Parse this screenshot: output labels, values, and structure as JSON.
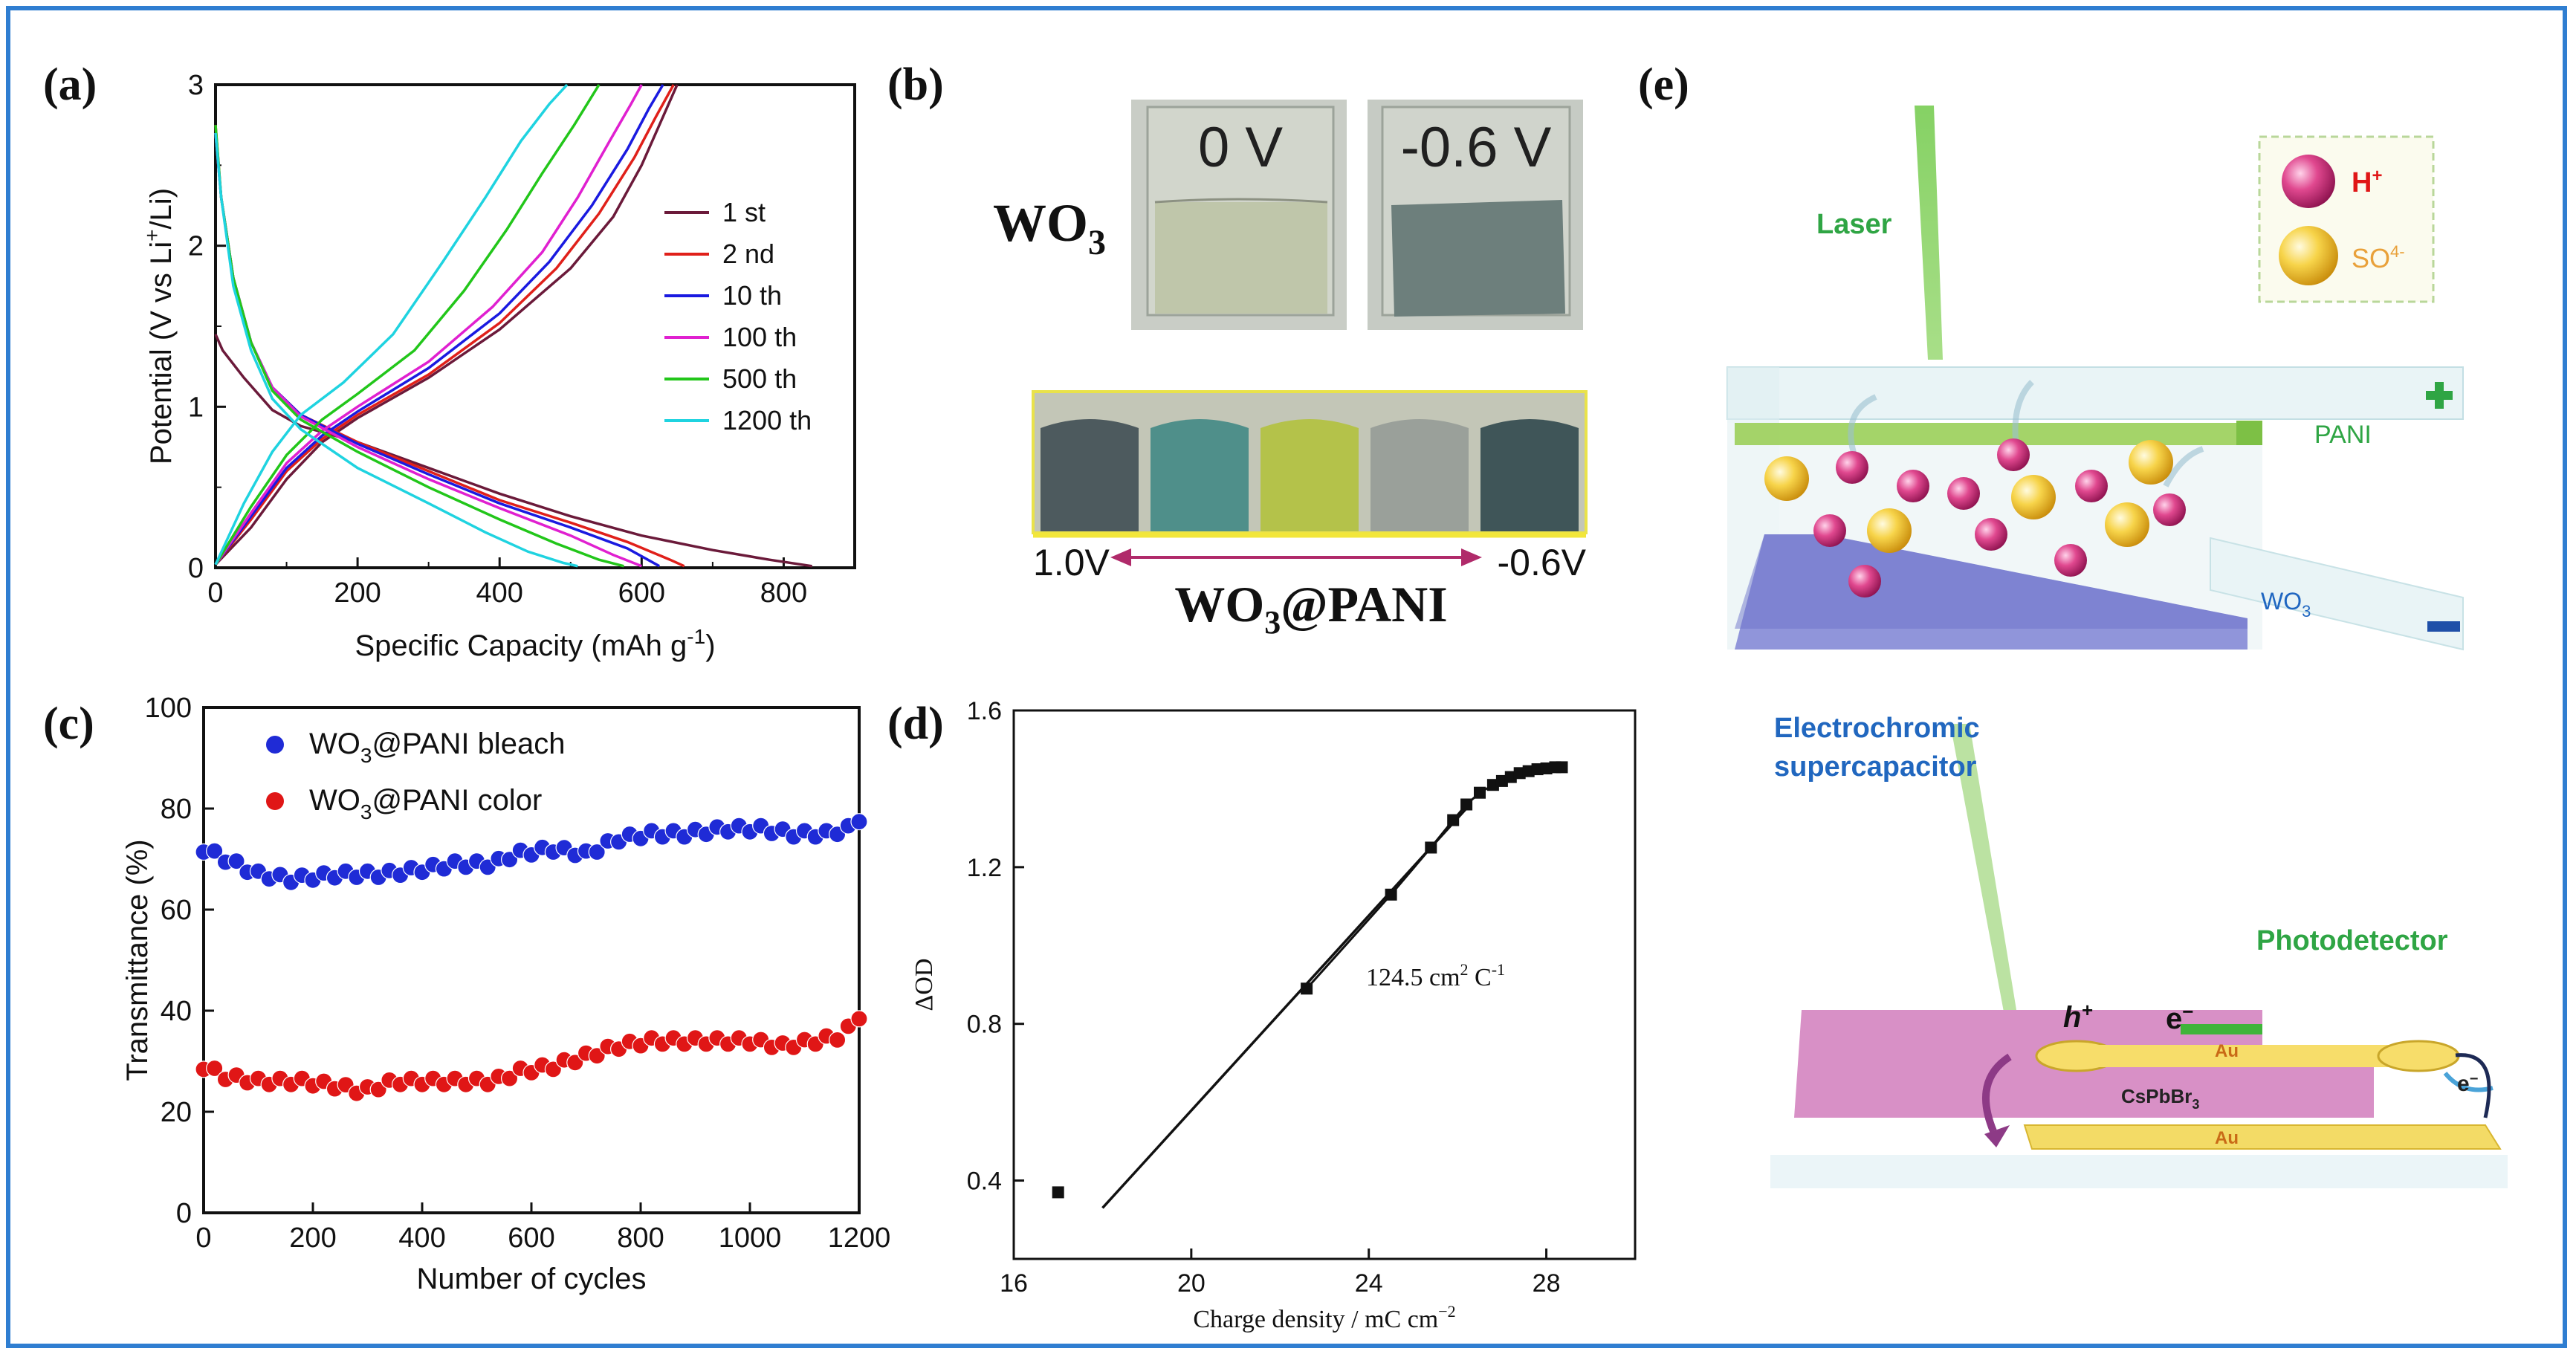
{
  "figure": {
    "colors": {
      "frame": "#2f7ed1",
      "black": "#111111",
      "bleach": "#1f2bd6",
      "color": "#e01616"
    }
  },
  "panel_a": {
    "label": "(a)",
    "chart_data": {
      "type": "line",
      "title": "",
      "xlabel": "Specific Capacity (mAh g",
      "xlabel_sup": "-1",
      "xlabel_close": ")",
      "ylabel": "Potential (V vs Li",
      "ylabel_sup": "+",
      "ylabel_close": "/Li)",
      "xlim": [
        0,
        900
      ],
      "ylim": [
        0,
        3
      ],
      "xticks": [
        "0",
        "200",
        "400",
        "600",
        "800"
      ],
      "yticks": [
        "0",
        "1",
        "2",
        "3"
      ],
      "legend_position": "right",
      "series": [
        {
          "name": "1 st",
          "color": "#6b1a3a",
          "discharge": [
            [
              0,
              1.45
            ],
            [
              10,
              1.35
            ],
            [
              40,
              1.18
            ],
            [
              80,
              0.98
            ],
            [
              120,
              0.88
            ],
            [
              200,
              0.78
            ],
            [
              300,
              0.62
            ],
            [
              400,
              0.46
            ],
            [
              500,
              0.32
            ],
            [
              600,
              0.2
            ],
            [
              700,
              0.11
            ],
            [
              780,
              0.05
            ],
            [
              840,
              0.01
            ]
          ],
          "charge": [
            [
              0,
              0.02
            ],
            [
              50,
              0.25
            ],
            [
              100,
              0.55
            ],
            [
              150,
              0.78
            ],
            [
              200,
              0.93
            ],
            [
              300,
              1.18
            ],
            [
              400,
              1.48
            ],
            [
              500,
              1.86
            ],
            [
              560,
              2.18
            ],
            [
              600,
              2.5
            ],
            [
              630,
              2.8
            ],
            [
              650,
              3.0
            ]
          ]
        },
        {
          "name": "2 nd",
          "color": "#e0201a",
          "discharge": [
            [
              0,
              2.75
            ],
            [
              8,
              2.3
            ],
            [
              25,
              1.8
            ],
            [
              50,
              1.4
            ],
            [
              80,
              1.12
            ],
            [
              120,
              0.95
            ],
            [
              200,
              0.78
            ],
            [
              300,
              0.6
            ],
            [
              400,
              0.42
            ],
            [
              500,
              0.28
            ],
            [
              580,
              0.16
            ],
            [
              640,
              0.05
            ],
            [
              660,
              0.01
            ]
          ],
          "charge": [
            [
              0,
              0.02
            ],
            [
              50,
              0.3
            ],
            [
              100,
              0.6
            ],
            [
              150,
              0.8
            ],
            [
              200,
              0.95
            ],
            [
              300,
              1.2
            ],
            [
              400,
              1.52
            ],
            [
              480,
              1.86
            ],
            [
              540,
              2.2
            ],
            [
              590,
              2.55
            ],
            [
              620,
              2.8
            ],
            [
              645,
              3.0
            ]
          ]
        },
        {
          "name": "10 th",
          "color": "#1a1ae0",
          "discharge": [
            [
              0,
              2.7
            ],
            [
              8,
              2.3
            ],
            [
              25,
              1.8
            ],
            [
              50,
              1.4
            ],
            [
              80,
              1.12
            ],
            [
              120,
              0.95
            ],
            [
              200,
              0.77
            ],
            [
              300,
              0.58
            ],
            [
              400,
              0.4
            ],
            [
              500,
              0.25
            ],
            [
              580,
              0.12
            ],
            [
              625,
              0.01
            ]
          ],
          "charge": [
            [
              0,
              0.02
            ],
            [
              50,
              0.32
            ],
            [
              100,
              0.62
            ],
            [
              150,
              0.82
            ],
            [
              200,
              0.97
            ],
            [
              300,
              1.24
            ],
            [
              400,
              1.58
            ],
            [
              470,
              1.9
            ],
            [
              530,
              2.25
            ],
            [
              580,
              2.6
            ],
            [
              610,
              2.85
            ],
            [
              630,
              3.0
            ]
          ]
        },
        {
          "name": "100 th",
          "color": "#e020d0",
          "discharge": [
            [
              0,
              2.7
            ],
            [
              8,
              2.3
            ],
            [
              25,
              1.8
            ],
            [
              50,
              1.4
            ],
            [
              80,
              1.12
            ],
            [
              120,
              0.94
            ],
            [
              200,
              0.75
            ],
            [
              300,
              0.55
            ],
            [
              400,
              0.37
            ],
            [
              500,
              0.2
            ],
            [
              560,
              0.08
            ],
            [
              600,
              0.01
            ]
          ],
          "charge": [
            [
              0,
              0.02
            ],
            [
              50,
              0.34
            ],
            [
              100,
              0.65
            ],
            [
              150,
              0.85
            ],
            [
              200,
              1.0
            ],
            [
              300,
              1.28
            ],
            [
              390,
              1.62
            ],
            [
              460,
              1.96
            ],
            [
              510,
              2.3
            ],
            [
              555,
              2.65
            ],
            [
              585,
              2.88
            ],
            [
              600,
              3.0
            ]
          ]
        },
        {
          "name": "500 th",
          "color": "#22c61a",
          "discharge": [
            [
              0,
              2.75
            ],
            [
              8,
              2.3
            ],
            [
              25,
              1.8
            ],
            [
              50,
              1.4
            ],
            [
              80,
              1.1
            ],
            [
              120,
              0.92
            ],
            [
              200,
              0.72
            ],
            [
              300,
              0.5
            ],
            [
              400,
              0.3
            ],
            [
              480,
              0.15
            ],
            [
              540,
              0.05
            ],
            [
              575,
              0.01
            ]
          ],
          "charge": [
            [
              0,
              0.02
            ],
            [
              50,
              0.38
            ],
            [
              100,
              0.7
            ],
            [
              150,
              0.92
            ],
            [
              200,
              1.08
            ],
            [
              280,
              1.35
            ],
            [
              350,
              1.72
            ],
            [
              410,
              2.1
            ],
            [
              460,
              2.45
            ],
            [
              505,
              2.75
            ],
            [
              540,
              3.0
            ]
          ]
        },
        {
          "name": "1200 th",
          "color": "#1fd3e0",
          "discharge": [
            [
              0,
              2.7
            ],
            [
              8,
              2.3
            ],
            [
              25,
              1.75
            ],
            [
              50,
              1.35
            ],
            [
              80,
              1.05
            ],
            [
              120,
              0.86
            ],
            [
              200,
              0.62
            ],
            [
              300,
              0.4
            ],
            [
              380,
              0.22
            ],
            [
              440,
              0.1
            ],
            [
              490,
              0.03
            ],
            [
              510,
              0.01
            ]
          ],
          "charge": [
            [
              0,
              0.02
            ],
            [
              40,
              0.4
            ],
            [
              80,
              0.72
            ],
            [
              120,
              0.95
            ],
            [
              180,
              1.15
            ],
            [
              250,
              1.45
            ],
            [
              320,
              1.9
            ],
            [
              380,
              2.3
            ],
            [
              430,
              2.65
            ],
            [
              470,
              2.88
            ],
            [
              495,
              3.0
            ]
          ]
        }
      ]
    }
  },
  "panel_b": {
    "label": "(b)",
    "wo3_label": "WO",
    "wo3_sub": "3",
    "photo_left_text": "0 V",
    "photo_right_text": "-0.6 V",
    "strip_left": "1.0V",
    "strip_right": "-0.6V",
    "composite_label": "WO",
    "composite_sub": "3",
    "composite_suffix": "@PANI",
    "swatch_colors": [
      "#4d5a5e",
      "#4f8f8a",
      "#b4c24a",
      "#9aa09a",
      "#3f5558"
    ]
  },
  "panel_c": {
    "label": "(c)",
    "chart_data": {
      "type": "scatter",
      "xlabel": "Number of cycles",
      "ylabel": "Transmittance (%)",
      "xlim": [
        0,
        1200
      ],
      "ylim": [
        0,
        100
      ],
      "xticks": [
        "0",
        "200",
        "400",
        "600",
        "800",
        "1000",
        "1200"
      ],
      "yticks": [
        "0",
        "20",
        "40",
        "60",
        "80",
        "100"
      ],
      "legend_position": "top-left",
      "series": [
        {
          "name_prefix": "WO",
          "name_sub": "3",
          "name_suffix": "@PANI bleach",
          "color": "#1f2bd6",
          "anchors": [
            [
              0,
              72
            ],
            [
              40,
              70
            ],
            [
              100,
              67
            ],
            [
              160,
              66
            ],
            [
              250,
              67
            ],
            [
              330,
              67
            ],
            [
              400,
              68
            ],
            [
              460,
              69
            ],
            [
              530,
              69
            ],
            [
              570,
              71
            ],
            [
              640,
              72
            ],
            [
              700,
              71
            ],
            [
              760,
              74
            ],
            [
              820,
              75
            ],
            [
              880,
              75
            ],
            [
              960,
              76
            ],
            [
              1020,
              76
            ],
            [
              1080,
              75
            ],
            [
              1140,
              75
            ],
            [
              1180,
              76
            ],
            [
              1200,
              78
            ]
          ]
        },
        {
          "name_prefix": "WO",
          "name_sub": "3",
          "name_suffix": "@PANI color",
          "color": "#e01616",
          "anchors": [
            [
              0,
              29
            ],
            [
              40,
              27
            ],
            [
              100,
              26
            ],
            [
              180,
              26
            ],
            [
              250,
              25
            ],
            [
              290,
              24
            ],
            [
              350,
              26
            ],
            [
              420,
              26
            ],
            [
              480,
              26
            ],
            [
              530,
              26
            ],
            [
              580,
              28
            ],
            [
              640,
              29
            ],
            [
              700,
              31
            ],
            [
              760,
              33
            ],
            [
              820,
              34
            ],
            [
              880,
              34
            ],
            [
              950,
              34
            ],
            [
              1000,
              34
            ],
            [
              1060,
              33
            ],
            [
              1120,
              34
            ],
            [
              1170,
              35
            ],
            [
              1200,
              39
            ]
          ]
        }
      ]
    }
  },
  "panel_d": {
    "label": "(d)",
    "chart_data": {
      "type": "line",
      "xlabel": "Charge density / mC cm",
      "xlabel_sup": "−2",
      "ylabel": "ΔOD",
      "xlim": [
        16,
        30
      ],
      "ylim": [
        0.2,
        1.6
      ],
      "xticks": [
        "16",
        "20",
        "24",
        "28"
      ],
      "yticks": [
        "0.4",
        "0.8",
        "1.2",
        "1.6"
      ],
      "annotation": "124.5 cm",
      "annotation_sup1": "2",
      "annotation_mid": " C",
      "annotation_sup2": "-1",
      "fit_line": [
        [
          18.0,
          0.33
        ],
        [
          26.2,
          1.35
        ]
      ],
      "points": [
        [
          17.0,
          0.37
        ],
        [
          22.6,
          0.89
        ],
        [
          24.5,
          1.13
        ],
        [
          25.4,
          1.25
        ],
        [
          25.9,
          1.32
        ],
        [
          26.2,
          1.36
        ],
        [
          26.5,
          1.39
        ],
        [
          26.8,
          1.41
        ],
        [
          27.0,
          1.42
        ],
        [
          27.2,
          1.43
        ],
        [
          27.4,
          1.44
        ],
        [
          27.6,
          1.445
        ],
        [
          27.8,
          1.45
        ],
        [
          28.0,
          1.452
        ],
        [
          28.2,
          1.455
        ],
        [
          28.35,
          1.455
        ]
      ]
    }
  },
  "panel_e": {
    "label": "(e)",
    "laser": "Laser",
    "h_plus": "H",
    "h_plus_sup": "+",
    "so": "SO",
    "so_sup": "4-",
    "pani": "PANI",
    "wo3": "WO",
    "wo3_sub": "3",
    "ec_line1": "Electrochromic",
    "ec_line2": "supercapacitor",
    "photodetector": "Photodetector",
    "hplus": "h",
    "hplus_sup": "+",
    "eminus": "e",
    "eminus_sup": "−",
    "au": "Au",
    "cspbbr": "CsPbBr",
    "cspbbr_sub": "3",
    "e_small": "e",
    "e_small_sup": "−"
  }
}
